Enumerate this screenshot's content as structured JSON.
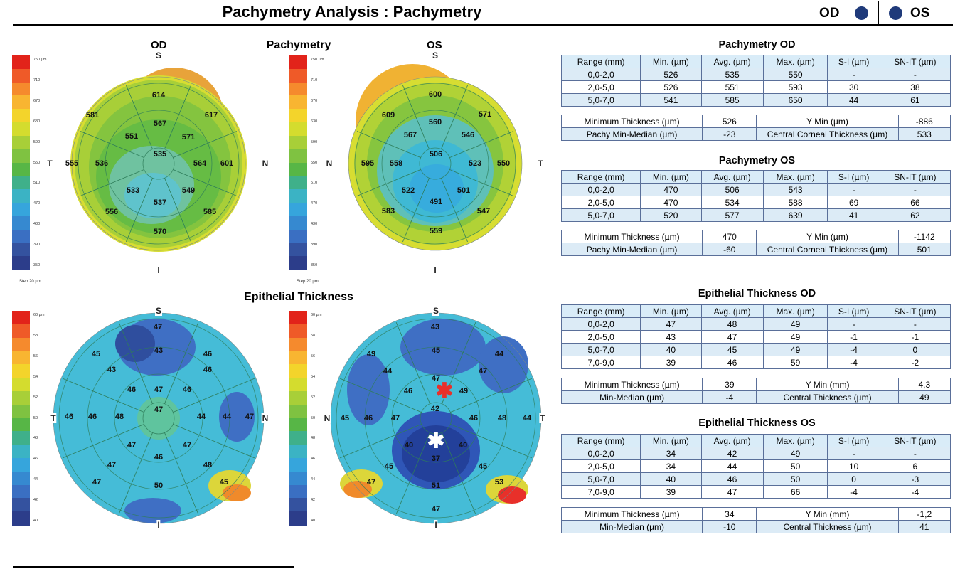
{
  "header": {
    "title": "Pachymetry Analysis : Pachymetry",
    "od": "OD",
    "os": "OS",
    "dot_color": "#1f3a7a"
  },
  "sections": {
    "pachymetry": "Pachymetry",
    "epithelial": "Epithelial Thickness"
  },
  "maps": {
    "pachy_od": {
      "label": "OD",
      "dirs": {
        "top": "S",
        "bottom": "I",
        "left": "T",
        "right": "N"
      },
      "values": [
        {
          "t": "614"
        },
        {
          "t": "617"
        },
        {
          "t": "581"
        },
        {
          "t": "567"
        },
        {
          "t": "551"
        },
        {
          "t": "571"
        },
        {
          "t": "555"
        },
        {
          "t": "536"
        },
        {
          "t": "535"
        },
        {
          "t": "564"
        },
        {
          "t": "601"
        },
        {
          "t": "533"
        },
        {
          "t": "549"
        },
        {
          "t": "537"
        },
        {
          "t": "556"
        },
        {
          "t": "585"
        },
        {
          "t": "570"
        }
      ]
    },
    "pachy_os": {
      "label": "OS",
      "dirs": {
        "top": "S",
        "bottom": "I",
        "left": "N",
        "right": "T"
      },
      "values": [
        {
          "t": "600"
        },
        {
          "t": "609"
        },
        {
          "t": "571"
        },
        {
          "t": "567"
        },
        {
          "t": "560"
        },
        {
          "t": "546"
        },
        {
          "t": "595"
        },
        {
          "t": "558"
        },
        {
          "t": "506"
        },
        {
          "t": "523"
        },
        {
          "t": "550"
        },
        {
          "t": "522"
        },
        {
          "t": "501"
        },
        {
          "t": "491"
        },
        {
          "t": "583"
        },
        {
          "t": "547"
        },
        {
          "t": "559"
        }
      ]
    },
    "epi_od": {
      "dirs": {
        "top": "S",
        "bottom": "I",
        "left": "T",
        "right": "N"
      },
      "values": [
        {
          "t": "47"
        },
        {
          "t": "45"
        },
        {
          "t": "43"
        },
        {
          "t": "46"
        },
        {
          "t": "43"
        },
        {
          "t": "46"
        },
        {
          "t": "46"
        },
        {
          "t": "46"
        },
        {
          "t": "47"
        },
        {
          "t": "46"
        },
        {
          "t": "46"
        },
        {
          "t": "48"
        },
        {
          "t": "47"
        },
        {
          "t": "44"
        },
        {
          "t": "44"
        },
        {
          "t": "47"
        },
        {
          "t": "47"
        },
        {
          "t": "47"
        },
        {
          "t": "46"
        },
        {
          "t": "47"
        },
        {
          "t": "48"
        },
        {
          "t": "47"
        },
        {
          "t": "50"
        },
        {
          "t": "45"
        }
      ]
    },
    "epi_os": {
      "dirs": {
        "top": "S",
        "bottom": "I",
        "left": "N",
        "right": "T"
      },
      "values": [
        {
          "t": "43"
        },
        {
          "t": "49"
        },
        {
          "t": "45"
        },
        {
          "t": "44"
        },
        {
          "t": "44"
        },
        {
          "t": "47"
        },
        {
          "t": "47"
        },
        {
          "t": "46"
        },
        {
          "t": "49"
        },
        {
          "t": "42"
        },
        {
          "t": "45"
        },
        {
          "t": "46"
        },
        {
          "t": "47"
        },
        {
          "t": "46"
        },
        {
          "t": "48"
        },
        {
          "t": "44"
        },
        {
          "t": "40"
        },
        {
          "t": "40"
        },
        {
          "t": "37"
        },
        {
          "t": "45"
        },
        {
          "t": "47"
        },
        {
          "t": "51"
        },
        {
          "t": "45"
        },
        {
          "t": "53"
        },
        {
          "t": "47"
        }
      ]
    }
  },
  "colorbars": {
    "pachy": {
      "ticks": [
        "750 µm",
        "710",
        "670",
        "630",
        "590",
        "550",
        "510",
        "470",
        "430",
        "390",
        "350"
      ],
      "step": "Step 20 µm"
    },
    "epi": {
      "ticks": [
        "60 µm",
        "58",
        "56",
        "54",
        "52",
        "50",
        "48",
        "46",
        "44",
        "42",
        "40"
      ]
    }
  },
  "tables": {
    "pachy_od": {
      "title": "Pachymetry OD",
      "headers": [
        "Range (mm)",
        "Min. (µm)",
        "Avg. (µm)",
        "Max. (µm)",
        "S-I (µm)",
        "SN-IT (µm)"
      ],
      "rows": [
        [
          "0,0-2,0",
          "526",
          "535",
          "550",
          "-",
          "-"
        ],
        [
          "2,0-5,0",
          "526",
          "551",
          "593",
          "30",
          "38"
        ],
        [
          "5,0-7,0",
          "541",
          "585",
          "650",
          "44",
          "61"
        ]
      ],
      "summary": [
        [
          "Minimum Thickness (µm)",
          "526",
          "Y Min (µm)",
          "-886"
        ],
        [
          "Pachy Min-Median (µm)",
          "-23",
          "Central Corneal Thickness (µm)",
          "533"
        ]
      ]
    },
    "pachy_os": {
      "title": "Pachymetry OS",
      "headers": [
        "Range (mm)",
        "Min. (µm)",
        "Avg. (µm)",
        "Max. (µm)",
        "S-I (µm)",
        "SN-IT (µm)"
      ],
      "rows": [
        [
          "0,0-2,0",
          "470",
          "506",
          "543",
          "-",
          "-"
        ],
        [
          "2,0-5,0",
          "470",
          "534",
          "588",
          "69",
          "66"
        ],
        [
          "5,0-7,0",
          "520",
          "577",
          "639",
          "41",
          "62"
        ]
      ],
      "summary": [
        [
          "Minimum Thickness (µm)",
          "470",
          "Y Min (µm)",
          "-1142"
        ],
        [
          "Pachy Min-Median (µm)",
          "-60",
          "Central Corneal Thickness (µm)",
          "501"
        ]
      ]
    },
    "epi_od": {
      "title": "Epithelial Thickness OD",
      "headers": [
        "Range (mm)",
        "Min. (µm)",
        "Avg. (µm)",
        "Max. (µm)",
        "S-I (µm)",
        "SN-IT (µm)"
      ],
      "rows": [
        [
          "0,0-2,0",
          "47",
          "48",
          "49",
          "-",
          "-"
        ],
        [
          "2,0-5,0",
          "43",
          "47",
          "49",
          "-1",
          "-1"
        ],
        [
          "5,0-7,0",
          "40",
          "45",
          "49",
          "-4",
          "0"
        ],
        [
          "7,0-9,0",
          "39",
          "46",
          "59",
          "-4",
          "-2"
        ]
      ],
      "summary": [
        [
          "Minimum Thickness (µm)",
          "39",
          "Y Min (mm)",
          "4,3"
        ],
        [
          "Min-Median (µm)",
          "-4",
          "Central Thickness (µm)",
          "49"
        ]
      ]
    },
    "epi_os": {
      "title": "Epithelial Thickness OS",
      "headers": [
        "Range (mm)",
        "Min. (µm)",
        "Avg. (µm)",
        "Max. (µm)",
        "S-I (µm)",
        "SN-IT (µm)"
      ],
      "rows": [
        [
          "0,0-2,0",
          "34",
          "42",
          "49",
          "-",
          "-"
        ],
        [
          "2,0-5,0",
          "34",
          "44",
          "50",
          "10",
          "6"
        ],
        [
          "5,0-7,0",
          "40",
          "46",
          "50",
          "0",
          "-3"
        ],
        [
          "7,0-9,0",
          "39",
          "47",
          "66",
          "-4",
          "-4"
        ]
      ],
      "summary": [
        [
          "Minimum Thickness (µm)",
          "34",
          "Y Min (mm)",
          "-1,2"
        ],
        [
          "Min-Median (µm)",
          "-10",
          "Central Thickness (µm)",
          "41"
        ]
      ]
    }
  }
}
